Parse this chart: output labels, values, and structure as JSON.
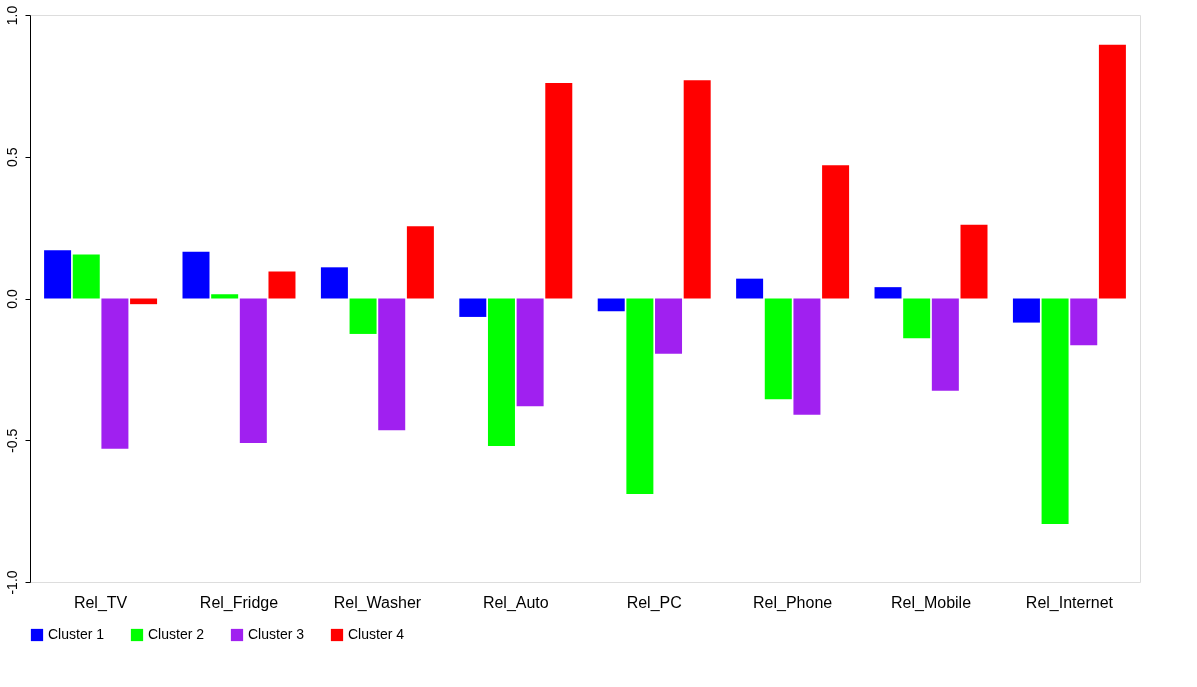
{
  "chart_data": {
    "type": "bar",
    "categories": [
      "Rel_TV",
      "Rel_Fridge",
      "Rel_Washer",
      "Rel_Auto",
      "Rel_PC",
      "Rel_Phone",
      "Rel_Mobile",
      "Rel_Internet"
    ],
    "series": [
      {
        "name": "Cluster 1",
        "color": "#0000ff",
        "values": [
          0.17,
          0.165,
          0.11,
          -0.065,
          -0.045,
          0.07,
          0.04,
          -0.085
        ]
      },
      {
        "name": "Cluster 2",
        "color": "#00ff00",
        "values": [
          0.155,
          0.015,
          -0.125,
          -0.52,
          -0.69,
          -0.355,
          -0.14,
          -0.795
        ]
      },
      {
        "name": "Cluster 3",
        "color": "#a020f0",
        "values": [
          -0.53,
          -0.51,
          -0.465,
          -0.38,
          -0.195,
          -0.41,
          -0.325,
          -0.165
        ]
      },
      {
        "name": "Cluster 4",
        "color": "#ff0000",
        "values": [
          -0.02,
          0.095,
          0.255,
          0.76,
          0.77,
          0.47,
          0.26,
          0.895
        ]
      }
    ],
    "ylim": [
      -1.0,
      1.0
    ],
    "yticks": [
      {
        "value": -1.0,
        "label": "-1.0"
      },
      {
        "value": -0.5,
        "label": "-0.5"
      },
      {
        "value": 0.0,
        "label": "0.0"
      },
      {
        "value": 0.5,
        "label": "0.5"
      },
      {
        "value": 1.0,
        "label": "1.0"
      }
    ],
    "grid": false,
    "legend": "bottom"
  }
}
